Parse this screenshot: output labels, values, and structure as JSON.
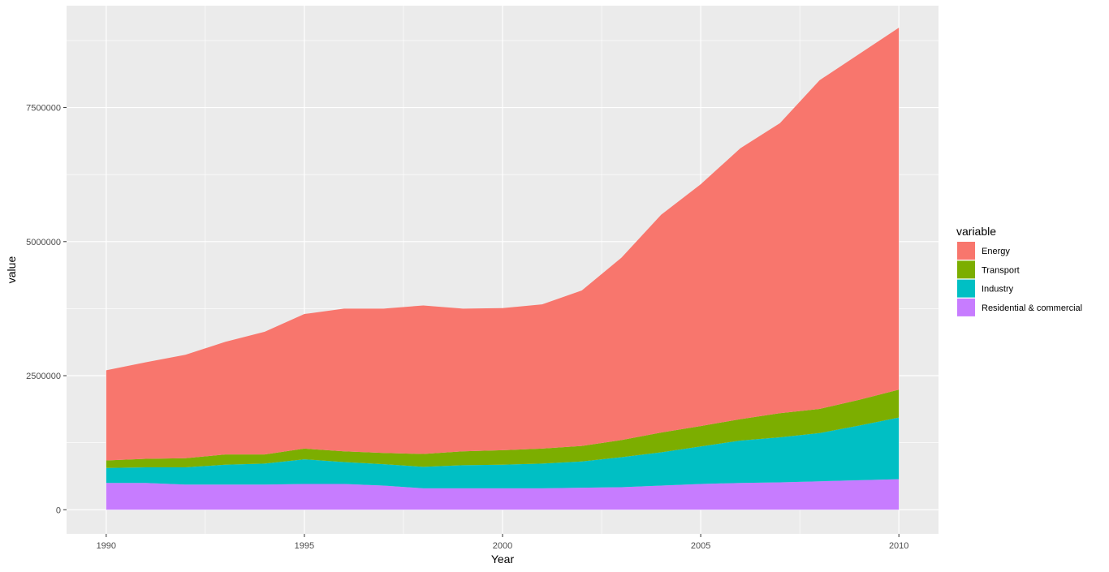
{
  "chart_data": {
    "type": "area",
    "stacked": true,
    "xlabel": "Year",
    "ylabel": "value",
    "x": [
      1990,
      1991,
      1992,
      1993,
      1994,
      1995,
      1996,
      1997,
      1998,
      1999,
      2000,
      2001,
      2002,
      2003,
      2004,
      2005,
      2006,
      2007,
      2008,
      2009,
      2010
    ],
    "x_ticks": [
      1990,
      1995,
      2000,
      2005,
      2010
    ],
    "y_ticks": [
      0,
      2500000,
      5000000,
      7500000
    ],
    "y_tick_labels": [
      "0",
      "2500000",
      "5000000",
      "7500000"
    ],
    "xlim": [
      1989,
      2011
    ],
    "ylim": [
      -450000,
      9400000
    ],
    "grid": true,
    "legend": {
      "title": "variable",
      "position": "right"
    },
    "series": [
      {
        "name": "Residential & commercial",
        "color": "#C77CFF",
        "values": [
          500000,
          500000,
          470000,
          470000,
          470000,
          480000,
          480000,
          450000,
          400000,
          400000,
          400000,
          400000,
          410000,
          420000,
          450000,
          480000,
          500000,
          510000,
          530000,
          550000,
          570000
        ]
      },
      {
        "name": "Industry",
        "color": "#00BFC4",
        "values": [
          280000,
          290000,
          320000,
          370000,
          390000,
          460000,
          410000,
          400000,
          400000,
          430000,
          440000,
          460000,
          490000,
          560000,
          620000,
          700000,
          790000,
          840000,
          900000,
          1020000,
          1150000
        ]
      },
      {
        "name": "Transport",
        "color": "#7CAE00",
        "values": [
          140000,
          160000,
          170000,
          190000,
          170000,
          200000,
          200000,
          210000,
          240000,
          260000,
          270000,
          280000,
          290000,
          320000,
          370000,
          380000,
          400000,
          450000,
          450000,
          480000,
          520000
        ]
      },
      {
        "name": "Energy",
        "color": "#F8766D",
        "values": [
          1680000,
          1800000,
          1930000,
          2100000,
          2290000,
          2510000,
          2660000,
          2690000,
          2770000,
          2660000,
          2650000,
          2690000,
          2900000,
          3400000,
          4060000,
          4510000,
          5050000,
          5410000,
          6130000,
          6450000,
          6750000
        ]
      }
    ]
  }
}
